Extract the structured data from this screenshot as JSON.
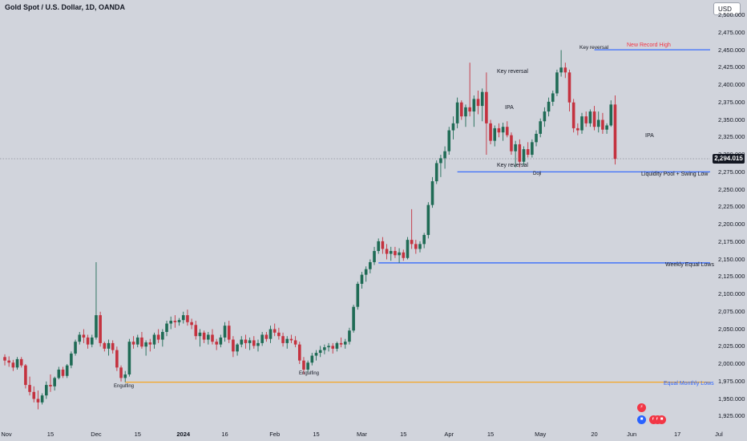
{
  "header": {
    "title": "Gold Spot / U.S. Dollar, 1D, OANDA",
    "currency_button": "USD",
    "last_price": "2,294.015"
  },
  "colors": {
    "background": "#d1d4dc",
    "up_candle": "#1f6b55",
    "down_candle": "#c4323f",
    "level_blue": "#2962ff",
    "level_orange": "#f5a623",
    "record_text": "#f23645",
    "last_price_bg": "#131722"
  },
  "chart_data": {
    "type": "candlestick",
    "symbol": "Gold Spot / U.S. Dollar",
    "timeframe": "1D",
    "source": "OANDA",
    "ylim": [
      1910,
      2510
    ],
    "y_ticks": [
      "2,500.000",
      "2,475.000",
      "2,450.000",
      "2,425.000",
      "2,400.000",
      "2,375.000",
      "2,350.000",
      "2,325.000",
      "2,300.000",
      "2,275.000",
      "2,250.000",
      "2,225.000",
      "2,200.000",
      "2,175.000",
      "2,150.000",
      "2,125.000",
      "2,100.000",
      "2,075.000",
      "2,050.000",
      "2,025.000",
      "2,000.000",
      "1,975.000",
      "1,950.000",
      "1,925.000"
    ],
    "x_ticks": [
      {
        "label": "Nov",
        "i": 0,
        "bold": false
      },
      {
        "label": "15",
        "i": 11,
        "bold": false
      },
      {
        "label": "Dec",
        "i": 22,
        "bold": false
      },
      {
        "label": "15",
        "i": 32,
        "bold": false
      },
      {
        "label": "2024",
        "i": 43,
        "bold": true
      },
      {
        "label": "16",
        "i": 53,
        "bold": false
      },
      {
        "label": "Feb",
        "i": 65,
        "bold": false
      },
      {
        "label": "15",
        "i": 75,
        "bold": false
      },
      {
        "label": "Mar",
        "i": 86,
        "bold": false
      },
      {
        "label": "15",
        "i": 96,
        "bold": false
      },
      {
        "label": "Apr",
        "i": 107,
        "bold": false
      },
      {
        "label": "15",
        "i": 117,
        "bold": false
      },
      {
        "label": "May",
        "i": 129,
        "bold": false
      },
      {
        "label": "20",
        "i": 142,
        "bold": false
      },
      {
        "label": "Jun",
        "i": 151,
        "bold": false
      },
      {
        "label": "17",
        "i": 162,
        "bold": false
      },
      {
        "label": "Jul",
        "i": 172,
        "bold": false
      }
    ],
    "last_price": 2294.015,
    "candles": [
      [
        2010,
        2014,
        1998,
        2005
      ],
      [
        2005,
        2011,
        1996,
        2002
      ],
      [
        2002,
        2006,
        1990,
        1995
      ],
      [
        1995,
        2010,
        1992,
        2007
      ],
      [
        2007,
        2010,
        1995,
        1998
      ],
      [
        1998,
        2000,
        1965,
        1970
      ],
      [
        1970,
        1982,
        1955,
        1960
      ],
      [
        1960,
        1968,
        1945,
        1950
      ],
      [
        1950,
        1962,
        1935,
        1945
      ],
      [
        1945,
        1958,
        1942,
        1955
      ],
      [
        1955,
        1975,
        1950,
        1970
      ],
      [
        1970,
        1985,
        1960,
        1968
      ],
      [
        1968,
        1982,
        1962,
        1980
      ],
      [
        1980,
        1996,
        1978,
        1992
      ],
      [
        1992,
        1996,
        1980,
        1983
      ],
      [
        1983,
        2000,
        1980,
        1998
      ],
      [
        1998,
        2018,
        1994,
        2015
      ],
      [
        2015,
        2035,
        2012,
        2032
      ],
      [
        2032,
        2046,
        2028,
        2042
      ],
      [
        2042,
        2050,
        2030,
        2038
      ],
      [
        2038,
        2042,
        2022,
        2028
      ],
      [
        2028,
        2042,
        2024,
        2038
      ],
      [
        2038,
        2146,
        2035,
        2070
      ],
      [
        2070,
        2075,
        2025,
        2030
      ],
      [
        2030,
        2032,
        2018,
        2022
      ],
      [
        2022,
        2035,
        2012,
        2030
      ],
      [
        2030,
        2034,
        2015,
        2020
      ],
      [
        2020,
        2025,
        1990,
        1995
      ],
      [
        1995,
        1998,
        1975,
        1980
      ],
      [
        1980,
        1990,
        1974,
        1985
      ],
      [
        1985,
        2036,
        1982,
        2032
      ],
      [
        2032,
        2040,
        2022,
        2028
      ],
      [
        2028,
        2042,
        2024,
        2038
      ],
      [
        2038,
        2046,
        2022,
        2025
      ],
      [
        2025,
        2034,
        2012,
        2031
      ],
      [
        2031,
        2036,
        2018,
        2028
      ],
      [
        2028,
        2045,
        2022,
        2042
      ],
      [
        2042,
        2050,
        2030,
        2035
      ],
      [
        2035,
        2050,
        2025,
        2046
      ],
      [
        2046,
        2062,
        2040,
        2058
      ],
      [
        2058,
        2068,
        2050,
        2062
      ],
      [
        2062,
        2070,
        2052,
        2060
      ],
      [
        2060,
        2066,
        2055,
        2063
      ],
      [
        2063,
        2075,
        2058,
        2070
      ],
      [
        2070,
        2078,
        2055,
        2060
      ],
      [
        2060,
        2065,
        2050,
        2056
      ],
      [
        2056,
        2062,
        2035,
        2040
      ],
      [
        2040,
        2050,
        2025,
        2045
      ],
      [
        2045,
        2048,
        2030,
        2035
      ],
      [
        2035,
        2046,
        2028,
        2042
      ],
      [
        2042,
        2050,
        2028,
        2032
      ],
      [
        2032,
        2036,
        2020,
        2028
      ],
      [
        2028,
        2042,
        2024,
        2038
      ],
      [
        2038,
        2060,
        2032,
        2055
      ],
      [
        2055,
        2062,
        2030,
        2035
      ],
      [
        2035,
        2040,
        2010,
        2018
      ],
      [
        2018,
        2030,
        2012,
        2028
      ],
      [
        2028,
        2040,
        2024,
        2035
      ],
      [
        2035,
        2042,
        2022,
        2030
      ],
      [
        2030,
        2038,
        2020,
        2034
      ],
      [
        2034,
        2040,
        2022,
        2026
      ],
      [
        2026,
        2035,
        2018,
        2030
      ],
      [
        2030,
        2046,
        2026,
        2042
      ],
      [
        2042,
        2046,
        2032,
        2036
      ],
      [
        2036,
        2055,
        2030,
        2050
      ],
      [
        2050,
        2058,
        2040,
        2045
      ],
      [
        2045,
        2052,
        2035,
        2040
      ],
      [
        2040,
        2045,
        2025,
        2030
      ],
      [
        2030,
        2040,
        2022,
        2036
      ],
      [
        2036,
        2042,
        2030,
        2034
      ],
      [
        2034,
        2040,
        2024,
        2028
      ],
      [
        2028,
        2032,
        2000,
        2005
      ],
      [
        2005,
        2010,
        1985,
        1992
      ],
      [
        1992,
        2005,
        1988,
        2002
      ],
      [
        2002,
        2016,
        1998,
        2012
      ],
      [
        2012,
        2020,
        2005,
        2016
      ],
      [
        2016,
        2026,
        2010,
        2020
      ],
      [
        2020,
        2028,
        2014,
        2024
      ],
      [
        2024,
        2030,
        2018,
        2026
      ],
      [
        2026,
        2030,
        2015,
        2022
      ],
      [
        2022,
        2032,
        2018,
        2030
      ],
      [
        2030,
        2038,
        2024,
        2028
      ],
      [
        2028,
        2036,
        2022,
        2032
      ],
      [
        2032,
        2052,
        2028,
        2048
      ],
      [
        2048,
        2085,
        2045,
        2082
      ],
      [
        2082,
        2118,
        2078,
        2115
      ],
      [
        2115,
        2132,
        2108,
        2128
      ],
      [
        2128,
        2140,
        2118,
        2136
      ],
      [
        2136,
        2150,
        2130,
        2146
      ],
      [
        2146,
        2168,
        2142,
        2162
      ],
      [
        2162,
        2180,
        2158,
        2176
      ],
      [
        2176,
        2182,
        2158,
        2165
      ],
      [
        2165,
        2172,
        2150,
        2158
      ],
      [
        2158,
        2168,
        2148,
        2162
      ],
      [
        2162,
        2168,
        2152,
        2156
      ],
      [
        2156,
        2166,
        2145,
        2160
      ],
      [
        2160,
        2164,
        2148,
        2152
      ],
      [
        2152,
        2182,
        2150,
        2178
      ],
      [
        2178,
        2222,
        2165,
        2172
      ],
      [
        2172,
        2178,
        2158,
        2165
      ],
      [
        2165,
        2176,
        2160,
        2172
      ],
      [
        2172,
        2188,
        2166,
        2185
      ],
      [
        2185,
        2232,
        2180,
        2228
      ],
      [
        2228,
        2268,
        2224,
        2262
      ],
      [
        2262,
        2292,
        2258,
        2288
      ],
      [
        2288,
        2300,
        2268,
        2295
      ],
      [
        2295,
        2312,
        2280,
        2305
      ],
      [
        2305,
        2340,
        2300,
        2335
      ],
      [
        2335,
        2355,
        2322,
        2345
      ],
      [
        2345,
        2382,
        2338,
        2375
      ],
      [
        2375,
        2378,
        2350,
        2355
      ],
      [
        2355,
        2372,
        2340,
        2368
      ],
      [
        2368,
        2432,
        2355,
        2362
      ],
      [
        2362,
        2385,
        2340,
        2380
      ],
      [
        2380,
        2392,
        2358,
        2370
      ],
      [
        2370,
        2395,
        2348,
        2390
      ],
      [
        2390,
        2418,
        2300,
        2345
      ],
      [
        2345,
        2350,
        2315,
        2320
      ],
      [
        2320,
        2342,
        2312,
        2338
      ],
      [
        2338,
        2345,
        2325,
        2332
      ],
      [
        2332,
        2346,
        2320,
        2340
      ],
      [
        2340,
        2348,
        2325,
        2328
      ],
      [
        2328,
        2332,
        2300,
        2305
      ],
      [
        2305,
        2320,
        2282,
        2315
      ],
      [
        2315,
        2322,
        2282,
        2290
      ],
      [
        2290,
        2312,
        2285,
        2308
      ],
      [
        2308,
        2318,
        2296,
        2300
      ],
      [
        2300,
        2322,
        2296,
        2318
      ],
      [
        2318,
        2335,
        2312,
        2330
      ],
      [
        2330,
        2352,
        2325,
        2348
      ],
      [
        2348,
        2368,
        2340,
        2362
      ],
      [
        2362,
        2382,
        2355,
        2376
      ],
      [
        2376,
        2392,
        2370,
        2388
      ],
      [
        2388,
        2422,
        2384,
        2418
      ],
      [
        2418,
        2450,
        2412,
        2425
      ],
      [
        2425,
        2432,
        2410,
        2418
      ],
      [
        2418,
        2422,
        2362,
        2375
      ],
      [
        2375,
        2380,
        2332,
        2338
      ],
      [
        2338,
        2345,
        2328,
        2335
      ],
      [
        2335,
        2360,
        2330,
        2355
      ],
      [
        2355,
        2362,
        2340,
        2345
      ],
      [
        2345,
        2365,
        2340,
        2362
      ],
      [
        2362,
        2370,
        2335,
        2340
      ],
      [
        2340,
        2362,
        2332,
        2350
      ],
      [
        2350,
        2360,
        2330,
        2336
      ],
      [
        2336,
        2345,
        2330,
        2342
      ],
      [
        2342,
        2378,
        2340,
        2372
      ],
      [
        2372,
        2385,
        2286,
        2294
      ]
    ],
    "levels": [
      {
        "name": "New Record High",
        "price": 2450.5,
        "from_i": 142,
        "color": "#2962ff"
      },
      {
        "name": "Liquidity Pool + Swing Low",
        "price": 2275.5,
        "from_i": 109,
        "color": "#2962ff"
      },
      {
        "name": "Weekly Equal Lows",
        "price": 2145,
        "from_i": 90,
        "color": "#2962ff"
      },
      {
        "name": "Equal Monthly Lows",
        "price": 1974,
        "from_i": 29,
        "color": "#f5a623"
      }
    ],
    "annotations": [
      "Key reversal",
      "Key reversal",
      "Key reversal",
      "IPA",
      "IPA",
      "Doji",
      "Engulfing",
      "Engulfing"
    ]
  },
  "labels": {
    "new_record_high": "New Record High",
    "liquidity_pool": "Liquidity Pool + Swing Low",
    "weekly_equal_lows": "Weekly Equal Lows",
    "equal_monthly_lows": "Equal Monthly Lows",
    "key_reversal_top": "Key reversal",
    "key_reversal_apr": "Key reversal",
    "key_reversal_may": "Key reversal",
    "ipa_apr": "IPA",
    "ipa_jun": "IPA",
    "doji": "Doji",
    "engulfing_dec": "Engulfing",
    "engulfing_feb": "Engulfing"
  }
}
